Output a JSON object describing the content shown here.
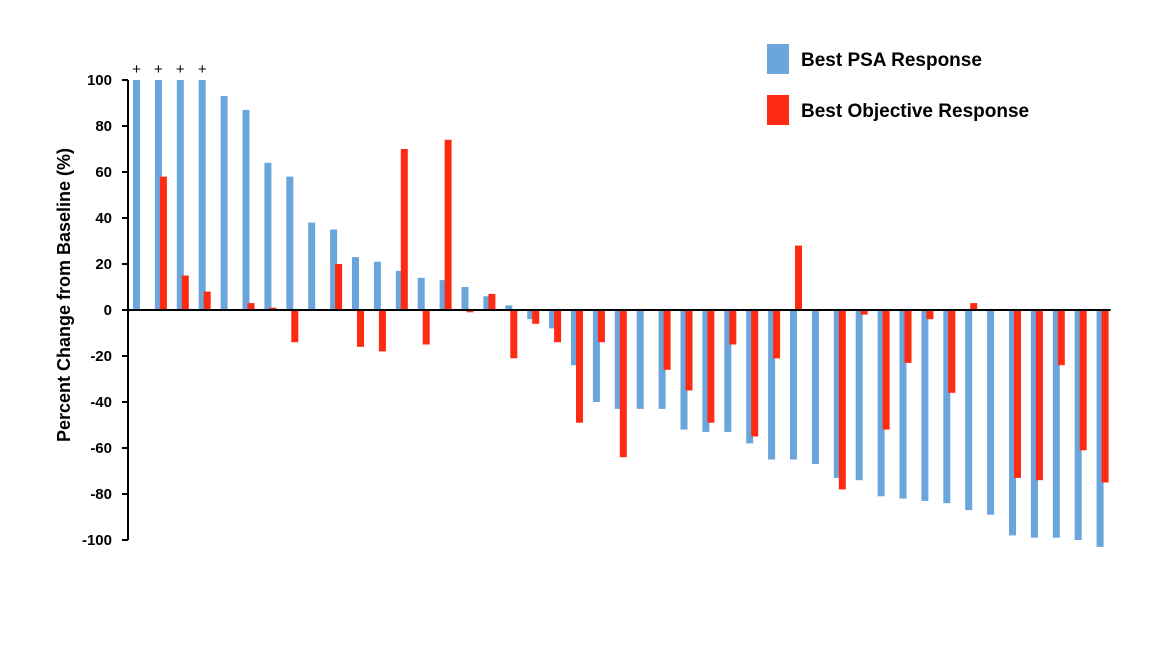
{
  "chart_data": {
    "type": "bar",
    "title": "",
    "xlabel": "",
    "ylabel": "Percent Change from Baseline (%)",
    "ylim": [
      -100,
      100
    ],
    "yticks": [
      100,
      80,
      60,
      40,
      20,
      0,
      -20,
      -40,
      -60,
      -80,
      -100
    ],
    "grid": false,
    "legend_position": "top-right",
    "series": [
      {
        "name": "Best PSA Response",
        "color": "#6aa6dc",
        "values": [
          100,
          100,
          100,
          100,
          93,
          87,
          64,
          58,
          38,
          35,
          23,
          21,
          17,
          14,
          13,
          10,
          6,
          2,
          -4,
          -8,
          -24,
          -40,
          -43,
          -43,
          -43,
          -52,
          -53,
          -53,
          -58,
          -65,
          -65,
          -67,
          -73,
          -74,
          -81,
          -82,
          -83,
          -84,
          -87,
          -89,
          -98,
          -99,
          -99,
          -100,
          -103
        ]
      },
      {
        "name": "Best Objective Response",
        "color": "#ff2a12",
        "values": [
          null,
          58,
          15,
          8,
          null,
          3,
          1,
          -14,
          null,
          20,
          -16,
          -18,
          70,
          -15,
          74,
          -1,
          7,
          -21,
          -6,
          -14,
          -49,
          -14,
          -64,
          null,
          -26,
          -35,
          -49,
          -15,
          -55,
          -21,
          28,
          null,
          -78,
          -2,
          -52,
          -23,
          -4,
          -36,
          3,
          null,
          -73,
          -74,
          -24,
          -61,
          -75
        ]
      }
    ],
    "annotations": [
      {
        "text": "+",
        "bar_index": 0
      },
      {
        "text": "+",
        "bar_index": 1
      },
      {
        "text": "+",
        "bar_index": 2
      },
      {
        "text": "+",
        "bar_index": 3
      }
    ]
  }
}
